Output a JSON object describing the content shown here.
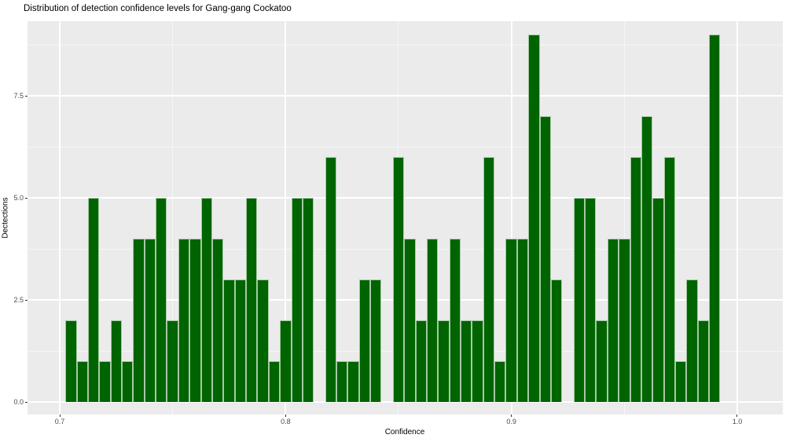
{
  "title": "Distribution of detection confidence levels for Gang-gang Cockatoo",
  "axes": {
    "x": {
      "label": "Confidence",
      "ticks": [
        "0.7",
        "0.8",
        "0.9",
        "1.0"
      ],
      "tick_values": [
        0.7,
        0.8,
        0.9,
        1.0
      ]
    },
    "y": {
      "label": "Dectections",
      "ticks": [
        "0.0",
        "2.5",
        "5.0",
        "7.5"
      ],
      "tick_values": [
        0,
        2.5,
        5,
        7.5
      ]
    }
  },
  "chart_data": {
    "type": "bar",
    "subtype": "histogram",
    "title": "Distribution of detection confidence levels for Gang-gang Cockatoo",
    "xlabel": "Confidence",
    "ylabel": "Dectections",
    "bar_color": "#006400",
    "panel_color": "#EBEBEB",
    "grid": "on",
    "legend": "none",
    "binwidth": 0.005,
    "xlim": [
      0.6857,
      1.0204
    ],
    "ylim": [
      0,
      9.45
    ],
    "x_major_gridlines": [
      0.7,
      0.8,
      0.9,
      1.0
    ],
    "x_minor_gridlines": [
      0.75,
      0.85,
      0.95
    ],
    "y_major_gridlines": [
      0,
      2.5,
      5,
      7.5
    ],
    "y_minor_gridlines": [
      1.25,
      3.75,
      6.25,
      8.75
    ],
    "bin_centers": [
      0.705,
      0.71,
      0.715,
      0.72,
      0.725,
      0.73,
      0.735,
      0.74,
      0.745,
      0.75,
      0.755,
      0.76,
      0.765,
      0.77,
      0.775,
      0.78,
      0.785,
      0.79,
      0.795,
      0.8,
      0.805,
      0.81,
      0.815,
      0.82,
      0.825,
      0.83,
      0.835,
      0.84,
      0.845,
      0.85,
      0.855,
      0.86,
      0.865,
      0.87,
      0.875,
      0.88,
      0.885,
      0.89,
      0.895,
      0.9,
      0.905,
      0.91,
      0.915,
      0.92,
      0.925,
      0.93,
      0.935,
      0.94,
      0.945,
      0.95,
      0.955,
      0.96,
      0.965,
      0.97,
      0.975,
      0.98,
      0.985,
      0.99
    ],
    "counts": [
      2,
      1,
      5,
      1,
      2,
      1,
      4,
      4,
      5,
      2,
      4,
      4,
      5,
      4,
      3,
      3,
      5,
      3,
      1,
      2,
      5,
      5,
      0,
      6,
      1,
      1,
      3,
      3,
      0,
      6,
      4,
      2,
      4,
      2,
      4,
      2,
      2,
      6,
      1,
      4,
      4,
      9,
      7,
      3,
      0,
      5,
      5,
      2,
      4,
      4,
      6,
      7,
      5,
      6,
      1,
      3,
      2,
      9
    ]
  }
}
